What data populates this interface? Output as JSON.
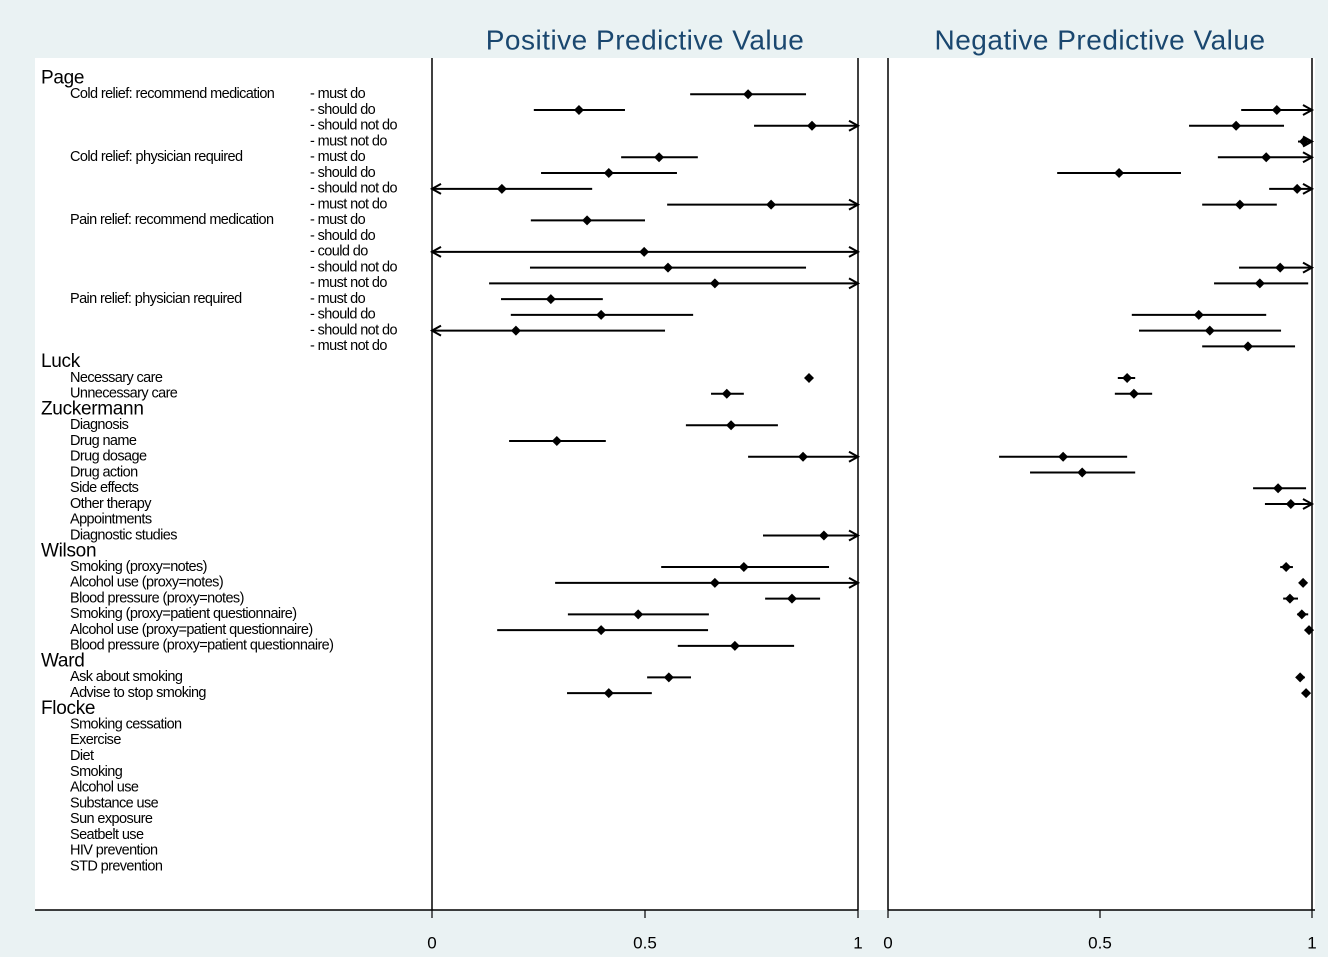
{
  "chart_data": {
    "type": "forest",
    "panels": [
      {
        "key": "ppv",
        "title": "Positive Predictive Value",
        "xlim": [
          0,
          1
        ],
        "xticks": [
          0,
          0.5,
          1
        ]
      },
      {
        "key": "npv",
        "title": "Negative Predictive Value",
        "xlim": [
          0,
          1
        ],
        "xticks": [
          0,
          0.5,
          1
        ]
      }
    ],
    "color": "#000000",
    "groups": [
      {
        "name": "Page",
        "items": [
          {
            "label": "Cold relief: recommend medication",
            "level": "- must do",
            "ppv": [
              0.742,
              0.606,
              0.878
            ],
            "npv": null
          },
          {
            "level": "- should do",
            "ppv": [
              0.345,
              0.239,
              0.453
            ],
            "npv": [
              0.917,
              0.833,
              1.05
            ]
          },
          {
            "level": "- should not do",
            "ppv": [
              0.892,
              0.756,
              1.05
            ],
            "npv": [
              0.821,
              0.71,
              0.934
            ]
          },
          {
            "level": "- must not do",
            "ppv": null,
            "npv": [
              0.981,
              0.967,
              1.05
            ]
          },
          {
            "label": "Cold relief: physician required",
            "level": "- must do",
            "ppv": [
              0.533,
              0.444,
              0.624
            ],
            "npv": [
              0.892,
              0.778,
              1.05
            ]
          },
          {
            "level": "- should do",
            "ppv": [
              0.415,
              0.256,
              0.575
            ],
            "npv": [
              0.545,
              0.399,
              0.691
            ]
          },
          {
            "level": "- should not do",
            "ppv": [
              0.164,
              -0.05,
              0.376
            ],
            "npv": [
              0.965,
              0.899,
              1.05
            ]
          },
          {
            "level": "- must not do",
            "ppv": [
              0.796,
              0.552,
              1.05
            ],
            "npv": [
              0.83,
              0.741,
              0.917
            ]
          },
          {
            "label": "Pain relief: recommend medication",
            "level": "- must do",
            "ppv": [
              0.364,
              0.232,
              0.5
            ],
            "npv": null
          },
          {
            "level": "- should do",
            "ppv": null,
            "npv": null
          },
          {
            "level": "- could do",
            "ppv": [
              0.498,
              -0.05,
              1.05
            ],
            "npv": null
          },
          {
            "level": "- should not do",
            "ppv": [
              0.554,
              0.23,
              0.878
            ],
            "npv": [
              0.925,
              0.828,
              1.05
            ]
          },
          {
            "level": "- must not do",
            "ppv": [
              0.664,
              0.134,
              1.05
            ],
            "npv": [
              0.877,
              0.769,
              0.991
            ]
          },
          {
            "label": "Pain relief: physician required",
            "level": "- must do",
            "ppv": [
              0.279,
              0.162,
              0.401
            ],
            "npv": null
          },
          {
            "level": "- should do",
            "ppv": [
              0.397,
              0.185,
              0.613
            ],
            "npv": [
              0.733,
              0.575,
              0.892
            ]
          },
          {
            "level": "- should not do",
            "ppv": [
              0.197,
              -0.05,
              0.547
            ],
            "npv": [
              0.759,
              0.592,
              0.927
            ]
          },
          {
            "level": "- must not do",
            "ppv": null,
            "npv": [
              0.849,
              0.741,
              0.96
            ]
          }
        ]
      },
      {
        "name": "Luck",
        "items": [
          {
            "label": "Necessary care",
            "ppv": [
              0.885,
              0.876,
              0.894
            ],
            "npv": [
              0.564,
              0.542,
              0.583
            ]
          },
          {
            "label": "Unnecessary care",
            "ppv": [
              0.692,
              0.655,
              0.732
            ],
            "npv": [
              0.58,
              0.535,
              0.623
            ]
          }
        ]
      },
      {
        "name": "Zuckermann",
        "items": [
          {
            "label": "Diagnosis",
            "ppv": [
              0.702,
              0.596,
              0.812
            ],
            "npv": null
          },
          {
            "label": "Drug name",
            "ppv": [
              0.293,
              0.181,
              0.408
            ],
            "npv": null
          },
          {
            "label": "Drug dosage",
            "ppv": [
              0.871,
              0.742,
              1.05
            ],
            "npv": [
              0.413,
              0.262,
              0.564
            ]
          },
          {
            "label": "Drug action",
            "ppv": null,
            "npv": [
              0.458,
              0.335,
              0.583
            ]
          },
          {
            "label": "Side effects",
            "ppv": null,
            "npv": [
              0.92,
              0.861,
              0.986
            ]
          },
          {
            "label": "Other therapy",
            "ppv": null,
            "npv": [
              0.95,
              0.889,
              1.05
            ]
          },
          {
            "label": "Appointments",
            "ppv": null,
            "npv": null
          },
          {
            "label": "Diagnostic studies",
            "ppv": [
              0.92,
              0.777,
              1.05
            ],
            "npv": null
          }
        ]
      },
      {
        "name": "Wilson",
        "items": [
          {
            "label": "Smoking (proxy=notes)",
            "ppv": [
              0.732,
              0.538,
              0.932
            ],
            "npv": [
              0.939,
              0.925,
              0.955
            ]
          },
          {
            "label": "Alcohol use  (proxy=notes)",
            "ppv": [
              0.664,
              0.289,
              1.05
            ],
            "npv": [
              0.979,
              0.972,
              0.988
            ]
          },
          {
            "label": "Blood pressure  (proxy=notes)",
            "ppv": [
              0.845,
              0.782,
              0.911
            ],
            "npv": [
              0.948,
              0.932,
              0.967
            ]
          },
          {
            "label": "Smoking  (proxy=patient questionnaire)",
            "ppv": [
              0.484,
              0.319,
              0.65
            ],
            "npv": [
              0.976,
              0.965,
              0.991
            ]
          },
          {
            "label": "Alcohol use (proxy=patient questionnaire)",
            "ppv": [
              0.397,
              0.153,
              0.648
            ],
            "npv": [
              0.993,
              0.983,
              0.998
            ]
          },
          {
            "label": "Blood pressure (proxy=patient questionnaire)",
            "ppv": [
              0.711,
              0.577,
              0.85
            ],
            "npv": null
          }
        ]
      },
      {
        "name": "Ward",
        "items": [
          {
            "label": "Ask about smoking",
            "ppv": [
              0.556,
              0.505,
              0.608
            ],
            "npv": [
              0.972,
              0.965,
              0.983
            ]
          },
          {
            "label": "Advise to stop smoking",
            "ppv": [
              0.415,
              0.317,
              0.516
            ],
            "npv": [
              0.986,
              0.976,
              0.995
            ]
          }
        ]
      },
      {
        "name": "Flocke",
        "items": [
          {
            "label": "Smoking cessation",
            "ppv": null,
            "npv": null
          },
          {
            "label": "Exercise",
            "ppv": null,
            "npv": null
          },
          {
            "label": "Diet",
            "ppv": null,
            "npv": null
          },
          {
            "label": "Smoking",
            "ppv": null,
            "npv": null
          },
          {
            "label": "Alcohol use",
            "ppv": null,
            "npv": null
          },
          {
            "label": "Substance use",
            "ppv": null,
            "npv": null
          },
          {
            "label": "Sun exposure",
            "ppv": null,
            "npv": null
          },
          {
            "label": "Seatbelt use",
            "ppv": null,
            "npv": null
          },
          {
            "label": "HIV prevention",
            "ppv": null,
            "npv": null
          },
          {
            "label": "STD prevention",
            "ppv": null,
            "npv": null
          }
        ]
      }
    ]
  }
}
